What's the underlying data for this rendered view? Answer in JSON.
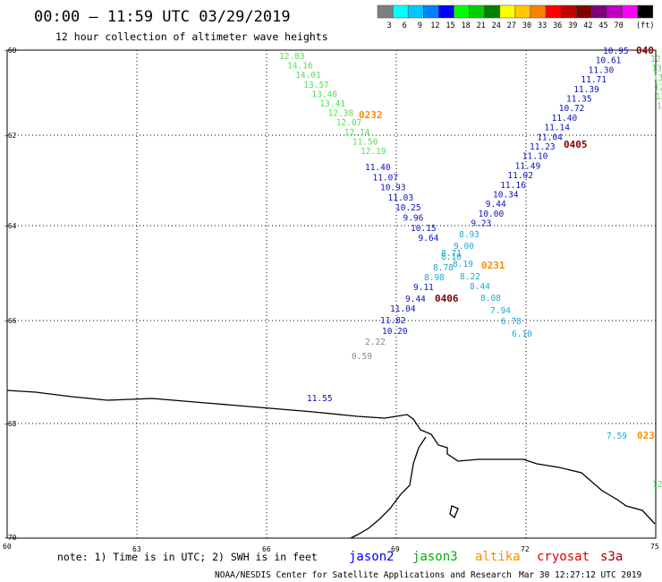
{
  "header": {
    "title": "00:00 – 11:59 UTC 03/29/2019",
    "subtitle": "12 hour collection of altimeter wave heights"
  },
  "legend": {
    "unit": "(ft)",
    "colors": [
      "#7f7f7f",
      "#00ffff",
      "#00c8ff",
      "#0080ff",
      "#0000ff",
      "#00ff00",
      "#00d000",
      "#008000",
      "#ffff00",
      "#ffc800",
      "#ff8000",
      "#ff0000",
      "#c00000",
      "#800000",
      "#800080",
      "#c000c0",
      "#ff00ff",
      "#000000"
    ],
    "labels": [
      "3",
      "6",
      "9",
      "12",
      "15",
      "18",
      "21",
      "24",
      "27",
      "30",
      "33",
      "36",
      "39",
      "42",
      "45",
      "70"
    ]
  },
  "axes": {
    "lat_labels": [
      "-60",
      "-62",
      "-64",
      "-66",
      "-68",
      "-70"
    ],
    "lon_labels": [
      "60",
      "63",
      "66",
      "69",
      "72",
      "75"
    ]
  },
  "tracks": {
    "jason3_a": [
      "12.83",
      "14.16",
      "14.01",
      "13.57",
      "13.40",
      "13.41",
      "12.38",
      "12.07",
      "12.14",
      "11.50",
      "12.19"
    ],
    "jason2_a": [
      "11.40",
      "11.07",
      "10.93",
      "11.03",
      "10.25",
      "9.96",
      "10.15",
      "9.64"
    ],
    "jason2_b": [
      "10.95",
      "10.61",
      "11.30",
      "11.71",
      "11.39",
      "11.35",
      "10.72",
      "11.40",
      "11.14",
      "11.04",
      "11.23",
      "11.10",
      "11.49",
      "11.02",
      "11.16",
      "10.34",
      "9.44",
      "10.00",
      "9.23"
    ],
    "cyan_a": [
      "8.93",
      "9.00",
      "8.71",
      "8.10",
      "8.19",
      "8.78",
      "8.22",
      "8.98",
      "8.44",
      "8.08",
      "7.94",
      "6.78",
      "6.10"
    ],
    "jason2_c": [
      "9.11",
      "9.44",
      "11.04",
      "11.82",
      "10.20"
    ],
    "gray": [
      "2.22",
      "0.59"
    ],
    "coast_value": "11.55",
    "right_edge_green": [
      "12.",
      "13.",
      "13.",
      "12.",
      "12.",
      "11."
    ],
    "right_cyan": "7.59",
    "right_green_low": "12."
  },
  "times": {
    "t0232": "0232",
    "t0405": "0405",
    "t0231": "0231",
    "t0406": "0406",
    "t040_edge": "040",
    "t023_edge": "023"
  },
  "footer": {
    "note": "note: 1) Time is in UTC; 2) SWH is in feet",
    "satellites": [
      {
        "name": "jason2",
        "color": "#0000ff"
      },
      {
        "name": "jason3",
        "color": "#00b000"
      },
      {
        "name": "altika",
        "color": "#ff8c00"
      },
      {
        "name": "cryosat",
        "color": "#e00000"
      },
      {
        "name": "s3a",
        "color": "#a00000"
      }
    ],
    "credit": "NOAA/NESDIS Center for Satellite Applications and Research",
    "timestamp": "Mar 30 12:27:12 UTC 2019"
  },
  "style_colors": {
    "jason3": "#55e055",
    "jason2": "#1010c0",
    "cyan": "#20a8d0",
    "gray": "#888888",
    "orange": "#ff8c00",
    "maroon": "#800000"
  }
}
